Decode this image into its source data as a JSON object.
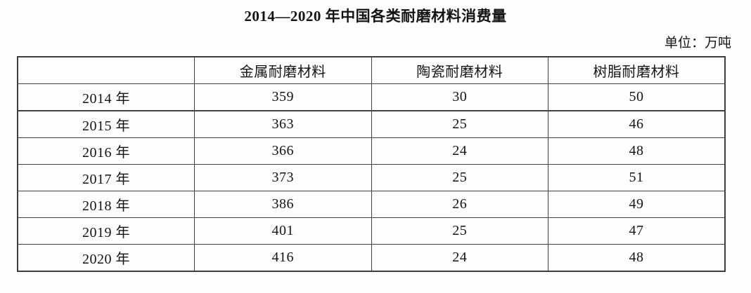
{
  "page": {
    "title": "2014—2020 年中国各类耐磨材料消费量",
    "unit_label": "单位：万吨"
  },
  "chart_data": {
    "type": "table",
    "title": "2014—2020 年中国各类耐磨材料消费量",
    "unit": "万吨",
    "columns": [
      "",
      "金属耐磨材料",
      "陶瓷耐磨材料",
      "树脂耐磨材料"
    ],
    "rows": [
      {
        "year": "2014 年",
        "values": [
          359,
          30,
          50
        ]
      },
      {
        "year": "2015 年",
        "values": [
          363,
          25,
          46
        ]
      },
      {
        "year": "2016 年",
        "values": [
          366,
          24,
          48
        ]
      },
      {
        "year": "2017 年",
        "values": [
          373,
          25,
          51
        ]
      },
      {
        "year": "2018 年",
        "values": [
          386,
          26,
          49
        ]
      },
      {
        "year": "2019 年",
        "values": [
          401,
          25,
          47
        ]
      },
      {
        "year": "2020 年",
        "values": [
          416,
          24,
          48
        ]
      }
    ]
  }
}
